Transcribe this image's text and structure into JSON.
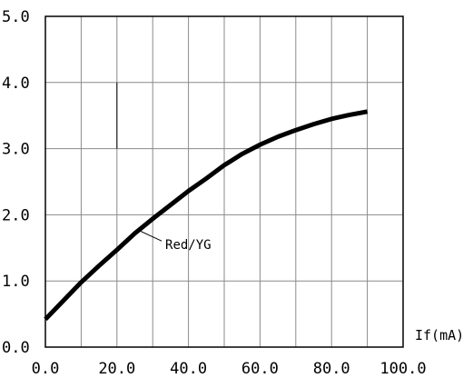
{
  "chart_data": {
    "type": "line",
    "title": "",
    "xlabel": "If(mA)",
    "ylabel": "",
    "xlim": [
      0,
      100
    ],
    "ylim": [
      0,
      5
    ],
    "x_ticks": [
      0,
      20,
      40,
      60,
      80,
      100
    ],
    "x_tick_labels": [
      "0.0",
      "20.0",
      "40.0",
      "60.0",
      "80.0",
      "100.0"
    ],
    "y_ticks": [
      0,
      1,
      2,
      3,
      4,
      5
    ],
    "y_tick_labels": [
      "0.0",
      "1.0",
      "2.0",
      "3.0",
      "4.0",
      "5.0"
    ],
    "x_grid_step": 10,
    "grid": true,
    "series": [
      {
        "name": "Red/YG",
        "x": [
          0,
          5,
          10,
          15,
          20,
          25,
          30,
          35,
          40,
          45,
          50,
          55,
          60,
          65,
          70,
          75,
          80,
          85,
          90
        ],
        "y": [
          0.42,
          0.7,
          0.98,
          1.23,
          1.47,
          1.72,
          1.94,
          2.15,
          2.36,
          2.55,
          2.75,
          2.92,
          3.06,
          3.18,
          3.28,
          3.37,
          3.45,
          3.51,
          3.56
        ]
      }
    ],
    "annotations": [
      {
        "text": "Red/YG",
        "x": 33,
        "y": 1.55
      }
    ],
    "marker_line": {
      "x": 20,
      "y_from": 3.0,
      "y_to": 4.0
    }
  }
}
